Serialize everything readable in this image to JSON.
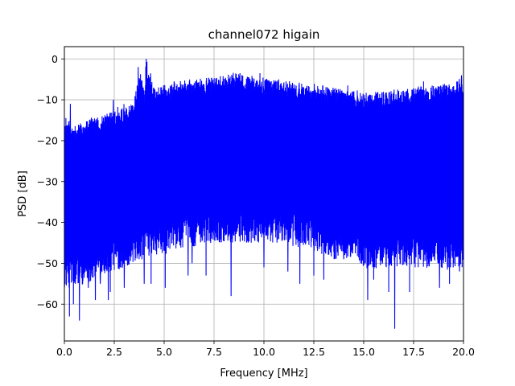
{
  "chart_data": {
    "type": "line",
    "title": "channel072 higain",
    "xlabel": "Frequency [MHz]",
    "ylabel": "PSD [dB]",
    "xlim": [
      0,
      20
    ],
    "ylim": [
      -69,
      3
    ],
    "grid": true,
    "line_color": "#0000ff",
    "x_ticks": [
      0,
      2.5,
      5,
      7.5,
      10,
      12.5,
      15,
      17.5,
      20
    ],
    "x_tick_labels": [
      "0.0",
      "2.5",
      "5.0",
      "7.5",
      "10.0",
      "12.5",
      "15.0",
      "17.5",
      "20.0"
    ],
    "y_ticks": [
      0,
      -10,
      -20,
      -30,
      -40,
      -50,
      -60
    ],
    "y_tick_labels": [
      "0",
      "−10",
      "−20",
      "−30",
      "−40",
      "−50",
      "−60"
    ],
    "series": [
      {
        "upper_envelope": {
          "x": [
            0,
            0.5,
            1,
            1.5,
            2,
            2.5,
            3,
            3.5,
            3.8,
            4,
            4.1,
            4.3,
            4.5,
            5,
            5.5,
            6,
            6.5,
            7,
            7.5,
            8,
            8.5,
            9,
            9.5,
            10,
            10.5,
            11,
            11.5,
            12,
            12.5,
            13,
            13.5,
            14,
            14.5,
            15,
            15.5,
            16,
            16.5,
            17,
            17.5,
            18,
            18.5,
            19,
            19.5,
            19.9,
            20
          ],
          "y": [
            -14,
            -16,
            -15,
            -14,
            -13,
            -12,
            -11,
            -10,
            -2,
            -8,
            0,
            -3,
            -7,
            -6,
            -6,
            -5,
            -5,
            -4.5,
            -4.5,
            -4,
            -3,
            -4,
            -4,
            -4.5,
            -5,
            -5,
            -5.5,
            -6,
            -6,
            -6.5,
            -7,
            -7.5,
            -7.5,
            -8,
            -8,
            -8,
            -7.5,
            -7.5,
            -7,
            -6.5,
            -6.5,
            -6,
            -6.5,
            -4,
            -9
          ]
        },
        "lower_envelope": {
          "x": [
            0,
            0.5,
            1,
            1.5,
            2,
            2.5,
            3,
            3.5,
            4,
            4.5,
            5,
            5.5,
            6,
            6.5,
            7,
            7.5,
            8,
            8.5,
            9,
            9.5,
            10,
            10.5,
            11,
            11.5,
            12,
            12.5,
            13,
            13.5,
            14,
            14.5,
            15,
            15.5,
            16,
            16.5,
            17,
            17.5,
            18,
            18.5,
            19,
            19.5,
            20
          ],
          "y": [
            -56,
            -56,
            -55,
            -54,
            -53,
            -52,
            -51,
            -50,
            -49,
            -48,
            -48,
            -47,
            -46,
            -46,
            -45,
            -45,
            -45,
            -45,
            -45,
            -45,
            -45,
            -45,
            -45,
            -46,
            -46,
            -47,
            -48,
            -49,
            -49,
            -50,
            -51,
            -52,
            -51,
            -51,
            -51,
            -51,
            -51,
            -52,
            -52,
            -51,
            -51
          ]
        },
        "dips": {
          "x": [
            0.25,
            0.45,
            0.55,
            0.75,
            1.2,
            1.55,
            1.8,
            2.2,
            2.3,
            3.0,
            4.0,
            4.35,
            5.05,
            6.2,
            6.4,
            7.1,
            8.35,
            10.0,
            11.2,
            11.8,
            12.5,
            13.0,
            14.0,
            15.2,
            15.5,
            16.25,
            16.55,
            17.3,
            18.0,
            18.8,
            19.3,
            19.8
          ],
          "y": [
            -63,
            -60,
            -55,
            -64,
            -56,
            -59,
            -55,
            -59,
            -57,
            -56,
            -55,
            -55,
            -56,
            -53,
            -50,
            -53,
            -58,
            -51,
            -52,
            -55,
            -53,
            -54,
            -49,
            -59,
            -54,
            -57,
            -66,
            -57,
            -54,
            -56,
            -55,
            -52
          ]
        },
        "peaks": {
          "x": [
            0.3,
            2.45,
            3.7,
            4.1,
            4.3,
            5.5,
            8.8,
            9.8,
            14.2,
            18.0,
            19.9
          ],
          "y": [
            -11,
            -10,
            -2,
            0,
            -5,
            -5.5,
            -3.5,
            -3.5,
            -6.5,
            -5.5,
            -4
          ]
        }
      }
    ]
  }
}
